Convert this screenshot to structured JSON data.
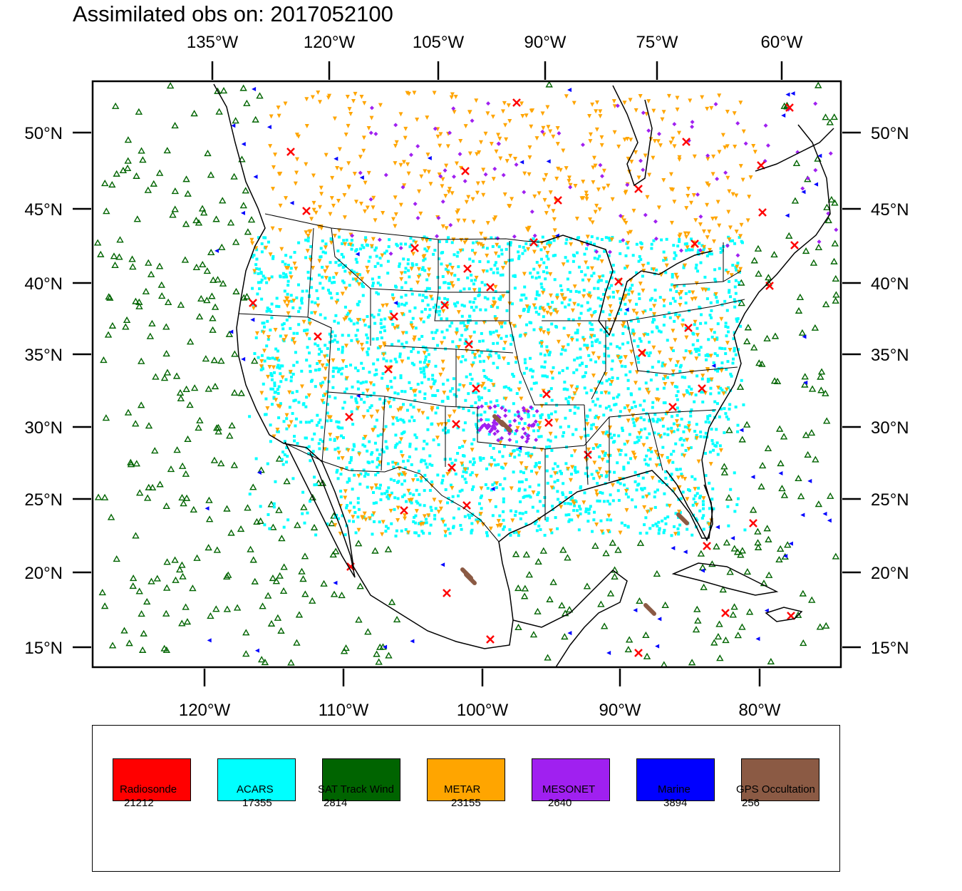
{
  "title": "Assimilated obs on: 2017052100",
  "axes": {
    "top_lon_labels": [
      "135°W",
      "120°W",
      "105°W",
      "90°W",
      "75°W",
      "60°W"
    ],
    "bottom_lon_labels": [
      "120°W",
      "110°W",
      "100°W",
      "90°W",
      "80°W"
    ],
    "lat_labels": [
      "50°N",
      "45°N",
      "40°N",
      "35°N",
      "30°N",
      "25°N",
      "20°N",
      "15°N"
    ]
  },
  "legend": [
    {
      "name": "Radiosonde",
      "count": "21212",
      "color": "#ff0000",
      "marker": "x-cross"
    },
    {
      "name": "ACARS",
      "count": "17355",
      "color": "#00ffff",
      "marker": "square-dot"
    },
    {
      "name": "SAT Track Wind",
      "count": "2814",
      "color": "#006400",
      "marker": "triangle-up-outline"
    },
    {
      "name": "METAR",
      "count": "23155",
      "color": "#ffa500",
      "marker": "triangle-down"
    },
    {
      "name": "MESONET",
      "count": "2640",
      "color": "#a020f0",
      "marker": "diamond"
    },
    {
      "name": "Marine",
      "count": "3894",
      "color": "#0000ff",
      "marker": "triangle-left"
    },
    {
      "name": "GPS Occultation",
      "count": "256",
      "color": "#8b5a44",
      "marker": "bar"
    }
  ]
}
